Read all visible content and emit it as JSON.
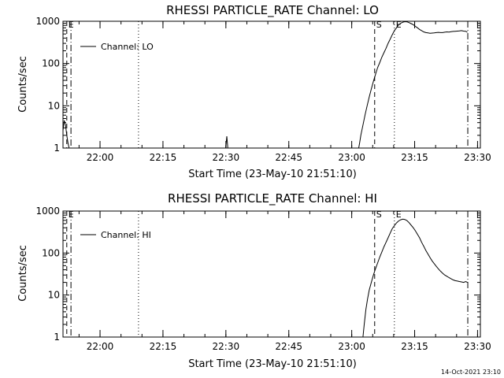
{
  "timestamp": "14-Oct-2021 23:10",
  "chart_data": [
    {
      "type": "line",
      "title": "RHESSI PARTICLE_RATE Channel: LO",
      "xlabel": "Start Time (23-May-10 21:51:10)",
      "ylabel": "Counts/sec",
      "yscale": "log",
      "ylim": [
        1,
        1000
      ],
      "xlim_minutes": [
        0,
        99.5
      ],
      "x_unit": "minutes since start (21:51:10)",
      "x_ticks": [
        {
          "m": 8.83,
          "label": "22:00"
        },
        {
          "m": 23.83,
          "label": "22:15"
        },
        {
          "m": 38.83,
          "label": "22:30"
        },
        {
          "m": 53.83,
          "label": "22:45"
        },
        {
          "m": 68.83,
          "label": "23:00"
        },
        {
          "m": 83.83,
          "label": "23:15"
        },
        {
          "m": 98.83,
          "label": "23:30"
        }
      ],
      "y_ticks": [
        {
          "v": 1,
          "label": "1"
        },
        {
          "v": 10,
          "label": "10"
        },
        {
          "v": 100,
          "label": "100"
        },
        {
          "v": 1000,
          "label": "1000"
        }
      ],
      "legend": {
        "position": "top-left",
        "entries": [
          "Channel: LO"
        ]
      },
      "markers": [
        {
          "m": 0.9,
          "style": "dashed",
          "label": "E"
        },
        {
          "m": 1.9,
          "style": "dashdot",
          "label": ""
        },
        {
          "m": 18.0,
          "style": "dotted",
          "label": ""
        },
        {
          "m": 74.3,
          "style": "dashed",
          "label": "S"
        },
        {
          "m": 79.0,
          "style": "dotted",
          "label": "E"
        },
        {
          "m": 96.5,
          "style": "dashdot",
          "label": ""
        }
      ],
      "series": [
        {
          "name": "Channel: LO",
          "x": [
            0,
            0.3,
            0.6,
            0.9,
            1.2,
            1.4,
            1.45,
            70.5,
            70.7,
            71,
            71.5,
            72,
            72.5,
            73,
            73.5,
            74,
            74.5,
            75,
            75.5,
            76,
            76.5,
            77,
            77.5,
            78,
            78.5,
            79,
            79.5,
            80,
            80.5,
            81,
            81.5,
            82,
            82.5,
            83,
            83.5,
            84,
            84.5,
            85,
            85.5,
            86,
            86.5,
            87,
            87.5,
            88,
            88.5,
            89,
            89.5,
            90,
            90.5,
            91,
            91.5,
            92,
            92.5,
            93,
            93.5,
            94,
            94.5,
            95,
            95.5,
            96,
            96.4
          ],
          "y": [
            2.6,
            4.5,
            3.5,
            2.0,
            1.3,
            1.05,
            1,
            1,
            1.3,
            2,
            3.5,
            6,
            10,
            16,
            25,
            38,
            55,
            80,
            105,
            140,
            180,
            230,
            300,
            380,
            480,
            600,
            700,
            820,
            900,
            950,
            980,
            970,
            930,
            880,
            830,
            760,
            700,
            640,
            600,
            560,
            540,
            530,
            520,
            525,
            530,
            540,
            545,
            540,
            540,
            550,
            560,
            555,
            565,
            575,
            580,
            585,
            590,
            600,
            585,
            580,
            550
          ]
        },
        {
          "name": "spike",
          "x": [
            38.8,
            39.05,
            39.3
          ],
          "y": [
            1,
            1.9,
            1
          ]
        }
      ]
    },
    {
      "type": "line",
      "title": "RHESSI PARTICLE_RATE Channel: HI",
      "xlabel": "Start Time (23-May-10 21:51:10)",
      "ylabel": "Counts/sec",
      "yscale": "log",
      "ylim": [
        1,
        1000
      ],
      "xlim_minutes": [
        0,
        99.5
      ],
      "x_unit": "minutes since start (21:51:10)",
      "x_ticks": [
        {
          "m": 8.83,
          "label": "22:00"
        },
        {
          "m": 23.83,
          "label": "22:15"
        },
        {
          "m": 38.83,
          "label": "22:30"
        },
        {
          "m": 53.83,
          "label": "22:45"
        },
        {
          "m": 68.83,
          "label": "23:00"
        },
        {
          "m": 83.83,
          "label": "23:15"
        },
        {
          "m": 98.83,
          "label": "23:30"
        }
      ],
      "y_ticks": [
        {
          "v": 1,
          "label": "1"
        },
        {
          "v": 10,
          "label": "10"
        },
        {
          "v": 100,
          "label": "100"
        },
        {
          "v": 1000,
          "label": "1000"
        }
      ],
      "legend": {
        "position": "top-left",
        "entries": [
          "Channel: HI"
        ]
      },
      "markers": [
        {
          "m": 0.9,
          "style": "dashed",
          "label": "E"
        },
        {
          "m": 1.9,
          "style": "dashdot",
          "label": ""
        },
        {
          "m": 18.0,
          "style": "dotted",
          "label": ""
        },
        {
          "m": 74.3,
          "style": "dashed",
          "label": "S"
        },
        {
          "m": 79.0,
          "style": "dotted",
          "label": "E"
        },
        {
          "m": 96.5,
          "style": "dashdot",
          "label": ""
        }
      ],
      "series": [
        {
          "name": "Channel: HI",
          "x": [
            71.5,
            71.8,
            72.2,
            72.6,
            73,
            73.5,
            74,
            74.5,
            75,
            75.5,
            76,
            76.5,
            77,
            77.5,
            78,
            78.5,
            79,
            79.5,
            80,
            80.5,
            81,
            81.5,
            82,
            82.5,
            83,
            83.5,
            84,
            84.5,
            85,
            85.5,
            86,
            86.5,
            87,
            87.5,
            88,
            88.5,
            89,
            89.5,
            90,
            90.5,
            91,
            91.5,
            92,
            92.5,
            93,
            93.5,
            94,
            94.5,
            95,
            95.5,
            96,
            96.4
          ],
          "y": [
            1,
            2,
            4.5,
            8,
            13,
            20,
            30,
            42,
            58,
            80,
            105,
            140,
            180,
            230,
            300,
            380,
            450,
            520,
            580,
            620,
            640,
            630,
            590,
            530,
            460,
            400,
            340,
            280,
            230,
            180,
            145,
            115,
            95,
            78,
            65,
            56,
            48,
            42,
            37,
            33,
            30,
            28,
            26,
            24.5,
            23,
            22,
            21.5,
            21,
            20.5,
            20,
            21,
            20
          ]
        }
      ]
    }
  ]
}
